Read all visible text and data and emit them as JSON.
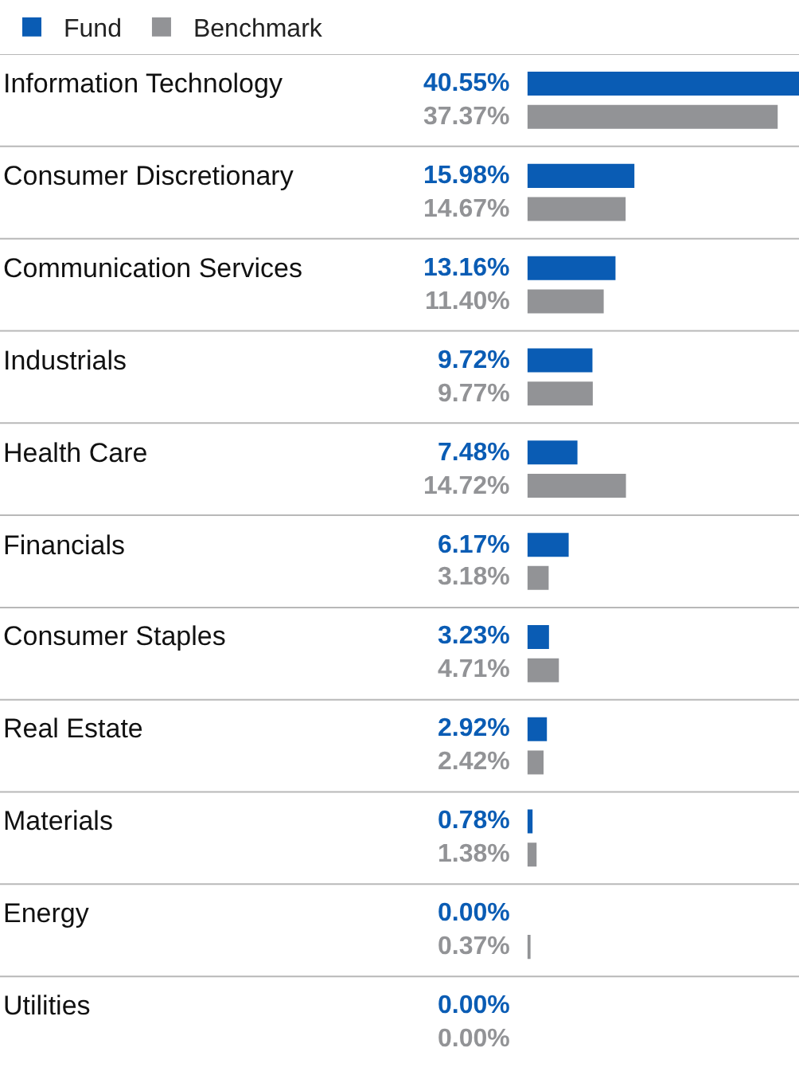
{
  "chart_data": {
    "type": "bar",
    "orientation": "horizontal",
    "legend": "top left",
    "categories": [
      "Information Technology",
      "Consumer Discretionary",
      "Communication Services",
      "Industrials",
      "Health Care",
      "Financials",
      "Consumer Staples",
      "Real Estate",
      "Materials",
      "Energy",
      "Utilities"
    ],
    "series": [
      {
        "name": "Fund",
        "color": "#0a5cb4",
        "values": [
          40.55,
          15.98,
          13.16,
          9.72,
          7.48,
          6.17,
          3.23,
          2.92,
          0.78,
          0.0,
          0.0
        ],
        "value_labels": [
          "40.55%",
          "15.98%",
          "13.16%",
          "9.72%",
          "7.48%",
          "6.17%",
          "3.23%",
          "2.92%",
          "0.78%",
          "0.00%",
          "0.00%"
        ]
      },
      {
        "name": "Benchmark",
        "color": "#929396",
        "values": [
          37.37,
          14.67,
          11.4,
          9.77,
          14.72,
          3.18,
          4.71,
          2.42,
          1.38,
          0.37,
          0.0
        ],
        "value_labels": [
          "37.37%",
          "14.67%",
          "11.40%",
          "9.77%",
          "14.72%",
          "3.18%",
          "4.71%",
          "2.42%",
          "1.38%",
          "0.37%",
          "0.00%"
        ]
      }
    ]
  }
}
